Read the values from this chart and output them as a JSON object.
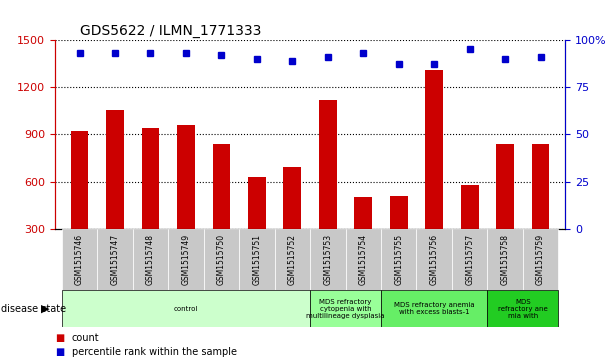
{
  "title": "GDS5622 / ILMN_1771333",
  "samples": [
    "GSM1515746",
    "GSM1515747",
    "GSM1515748",
    "GSM1515749",
    "GSM1515750",
    "GSM1515751",
    "GSM1515752",
    "GSM1515753",
    "GSM1515754",
    "GSM1515755",
    "GSM1515756",
    "GSM1515757",
    "GSM1515758",
    "GSM1515759"
  ],
  "counts": [
    920,
    1055,
    940,
    960,
    840,
    630,
    690,
    1120,
    500,
    510,
    1310,
    575,
    840,
    840
  ],
  "percentile_ranks": [
    93,
    93,
    93,
    93,
    92,
    90,
    89,
    91,
    93,
    87,
    87,
    95,
    90,
    91
  ],
  "bar_color": "#cc0000",
  "dot_color": "#0000cc",
  "ylim_left": [
    300,
    1500
  ],
  "ylim_right": [
    0,
    100
  ],
  "yticks_left": [
    300,
    600,
    900,
    1200,
    1500
  ],
  "yticks_right": [
    0,
    25,
    50,
    75,
    100
  ],
  "disease_groups": [
    {
      "label": "control",
      "start": 0,
      "end": 7,
      "color": "#ccffcc"
    },
    {
      "label": "MDS refractory\ncytopenia with\nmultilineage dysplasia",
      "start": 7,
      "end": 9,
      "color": "#99ff99"
    },
    {
      "label": "MDS refractory anemia\nwith excess blasts-1",
      "start": 9,
      "end": 12,
      "color": "#66ee66"
    },
    {
      "label": "MDS\nrefractory ane\nmia with",
      "start": 12,
      "end": 14,
      "color": "#22cc22"
    }
  ],
  "legend_count_label": "count",
  "legend_percentile_label": "percentile rank within the sample",
  "disease_state_label": "disease state",
  "xtick_bg": "#c8c8c8"
}
